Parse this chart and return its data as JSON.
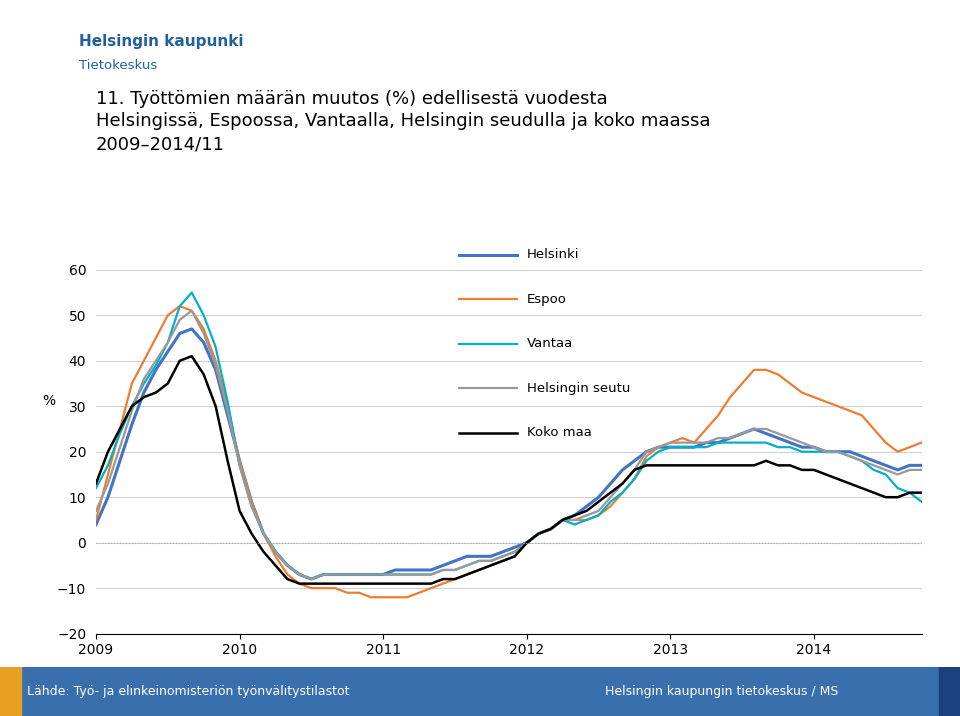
{
  "title_line1": "11. Työttömien määrän muutos (%) edellisestä vuodesta",
  "title_line2": "Helsingissä, Espoossa, Vantaalla, Helsingin seudulla ja koko maassa",
  "title_line3": "2009–2014/11",
  "ylabel": "%",
  "ylim": [
    -20,
    65
  ],
  "yticks": [
    -20,
    -10,
    0,
    10,
    20,
    30,
    40,
    50,
    60
  ],
  "footer_left": "Lähde: Työ- ja elinkeinomisteriön työnvälitystilastot",
  "footer_right": "Helsingin kaupungin tietokeskus / MS",
  "footer_bg": "#3a6fad",
  "footer_left_bg": "#e8a020",
  "footer_right_bg": "#1a4080",
  "header_org": "Helsingin kaupunki",
  "header_sub": "Tietokeskus",
  "logo_shield_blue": "#2060a0",
  "logo_shield_gold": "#c8900a",
  "deco_blue": "#3a6fad",
  "deco_teal": "#00b0c8",
  "deco_orange": "#e8a020",
  "series_names": [
    "Helsinki",
    "Espoo",
    "Vantaa",
    "Helsingin seutu",
    "Koko maa"
  ],
  "series_colors": [
    "#4472c4",
    "#ed7d31",
    "#00b0c8",
    "#999999",
    "#000000"
  ],
  "series_linewidths": [
    2.2,
    1.6,
    1.6,
    1.6,
    1.8
  ],
  "Helsinki": [
    4,
    10,
    18,
    26,
    33,
    38,
    42,
    46,
    47,
    44,
    38,
    28,
    18,
    9,
    2,
    -2,
    -5,
    -7,
    -8,
    -7,
    -7,
    -7,
    -7,
    -7,
    -7,
    -6,
    -6,
    -6,
    -6,
    -5,
    -4,
    -3,
    -3,
    -3,
    -2,
    -1,
    0,
    2,
    3,
    5,
    6,
    8,
    10,
    13,
    16,
    18,
    20,
    21,
    21,
    21,
    21,
    22,
    22,
    23,
    24,
    25,
    24,
    23,
    22,
    21,
    21,
    20,
    20,
    20,
    19,
    18,
    17,
    16,
    17,
    17
  ],
  "Espoo": [
    5,
    15,
    25,
    35,
    40,
    45,
    50,
    52,
    51,
    47,
    40,
    30,
    18,
    9,
    2,
    -3,
    -7,
    -9,
    -10,
    -10,
    -10,
    -11,
    -11,
    -12,
    -12,
    -12,
    -12,
    -11,
    -10,
    -9,
    -8,
    -7,
    -6,
    -5,
    -4,
    -3,
    0,
    2,
    3,
    5,
    5,
    5,
    6,
    8,
    11,
    14,
    19,
    21,
    22,
    23,
    22,
    25,
    28,
    32,
    35,
    38,
    38,
    37,
    35,
    33,
    32,
    31,
    30,
    29,
    28,
    25,
    22,
    20,
    21,
    22
  ],
  "Vantaa": [
    12,
    17,
    24,
    30,
    35,
    39,
    44,
    52,
    55,
    50,
    43,
    31,
    17,
    8,
    2,
    -2,
    -5,
    -7,
    -8,
    -7,
    -7,
    -7,
    -7,
    -7,
    -7,
    -7,
    -7,
    -7,
    -7,
    -6,
    -6,
    -5,
    -4,
    -4,
    -3,
    -2,
    0,
    2,
    3,
    5,
    4,
    5,
    6,
    9,
    11,
    14,
    18,
    20,
    21,
    21,
    21,
    21,
    22,
    22,
    22,
    22,
    22,
    21,
    21,
    20,
    20,
    20,
    20,
    19,
    18,
    16,
    15,
    12,
    11,
    9
  ],
  "Helsingin seutu": [
    7,
    13,
    21,
    29,
    36,
    40,
    44,
    49,
    51,
    46,
    39,
    29,
    17,
    8,
    2,
    -2,
    -5,
    -7,
    -8,
    -7,
    -7,
    -7,
    -7,
    -7,
    -7,
    -7,
    -7,
    -7,
    -7,
    -6,
    -6,
    -5,
    -4,
    -4,
    -3,
    -2,
    0,
    2,
    3,
    5,
    5,
    6,
    7,
    10,
    13,
    16,
    20,
    21,
    22,
    22,
    22,
    22,
    23,
    23,
    24,
    25,
    25,
    24,
    23,
    22,
    21,
    20,
    20,
    19,
    18,
    17,
    16,
    15,
    16,
    16
  ],
  "Koko maa": [
    13,
    20,
    25,
    30,
    32,
    33,
    35,
    40,
    41,
    37,
    30,
    18,
    7,
    2,
    -2,
    -5,
    -8,
    -9,
    -9,
    -9,
    -9,
    -9,
    -9,
    -9,
    -9,
    -9,
    -9,
    -9,
    -9,
    -8,
    -8,
    -7,
    -6,
    -5,
    -4,
    -3,
    0,
    2,
    3,
    5,
    6,
    7,
    9,
    11,
    13,
    16,
    17,
    17,
    17,
    17,
    17,
    17,
    17,
    17,
    17,
    17,
    18,
    17,
    17,
    16,
    16,
    15,
    14,
    13,
    12,
    11,
    10,
    10,
    11,
    11
  ],
  "x_start_year": 2009,
  "n_points": 70
}
